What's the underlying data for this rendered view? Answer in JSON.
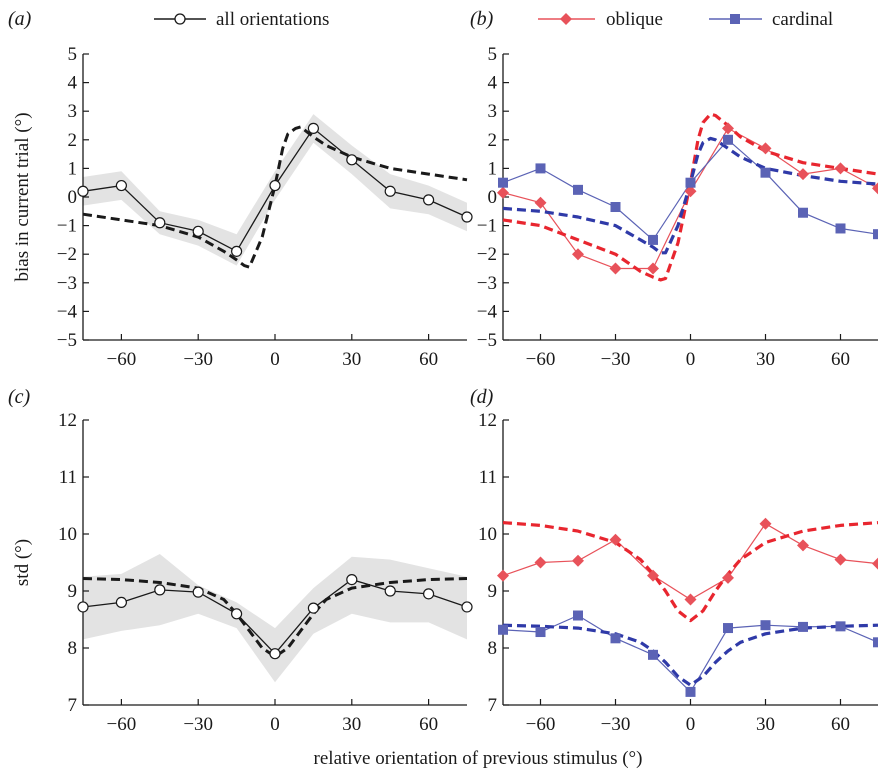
{
  "figure": {
    "xlabel": "relative orientation of previous stimulus (°)"
  },
  "legend": {
    "all": "all orientations",
    "oblique": "oblique",
    "cardinal": "cardinal"
  },
  "colors": {
    "black": "#1a1a1a",
    "oblique": "#e8525a",
    "oblique_fit": "#e8262f",
    "cardinal": "#5b63b5",
    "cardinal_fit": "#2f3aa8",
    "shade": "#e3e3e3"
  },
  "chart_data": [
    {
      "panel": "(a)",
      "type": "line",
      "ylabel": "bias in current trial (°)",
      "xlim": [
        -75,
        75
      ],
      "ylim": [
        -5,
        5
      ],
      "xticks": [
        -60,
        -30,
        0,
        30,
        60
      ],
      "yticks": [
        -5,
        -4,
        -3,
        -2,
        -1,
        0,
        1,
        2,
        3,
        4,
        5
      ],
      "x": [
        -75,
        -60,
        -45,
        -30,
        -15,
        0,
        15,
        30,
        45,
        60,
        75
      ],
      "series": [
        {
          "name": "all orientations",
          "marker": "circle",
          "values": [
            0.2,
            0.4,
            -0.9,
            -1.2,
            -1.9,
            0.4,
            2.4,
            1.3,
            0.2,
            -0.1,
            -0.7
          ],
          "band_upper": [
            0.7,
            0.9,
            -0.5,
            -0.8,
            -1.3,
            0.9,
            2.9,
            1.8,
            0.8,
            0.4,
            -0.2
          ],
          "band_lower": [
            -0.3,
            -0.1,
            -1.3,
            -1.7,
            -2.4,
            -0.1,
            1.9,
            0.8,
            -0.4,
            -0.6,
            -1.2
          ],
          "fit_x": [
            -75,
            -60,
            -45,
            -30,
            -20,
            -15,
            -12,
            -10,
            -5,
            0,
            3,
            5,
            8,
            10,
            15,
            20,
            30,
            45,
            60,
            75
          ],
          "fit": [
            -0.6,
            -0.8,
            -1.0,
            -1.4,
            -1.9,
            -2.2,
            -2.4,
            -2.45,
            -1.4,
            0.4,
            1.7,
            2.2,
            2.4,
            2.45,
            2.1,
            1.8,
            1.4,
            1.0,
            0.8,
            0.6
          ]
        }
      ]
    },
    {
      "panel": "(b)",
      "type": "line",
      "xlim": [
        -75,
        75
      ],
      "ylim": [
        -5,
        5
      ],
      "xticks": [
        -60,
        -30,
        0,
        30,
        60
      ],
      "yticks": [
        -5,
        -4,
        -3,
        -2,
        -1,
        0,
        1,
        2,
        3,
        4,
        5
      ],
      "x": [
        -75,
        -60,
        -45,
        -30,
        -15,
        0,
        15,
        30,
        45,
        60,
        75
      ],
      "series": [
        {
          "name": "oblique",
          "marker": "diamond",
          "values": [
            0.15,
            -0.2,
            -2.0,
            -2.5,
            -2.5,
            0.2,
            2.4,
            1.7,
            0.8,
            1.0,
            0.3
          ],
          "fit_x": [
            -75,
            -60,
            -45,
            -30,
            -20,
            -15,
            -12,
            -10,
            -5,
            0,
            3,
            5,
            8,
            10,
            15,
            20,
            30,
            45,
            60,
            75
          ],
          "fit": [
            -0.8,
            -1.0,
            -1.5,
            -2.0,
            -2.6,
            -2.8,
            -2.9,
            -2.85,
            -1.6,
            0.5,
            2.0,
            2.6,
            2.9,
            2.85,
            2.5,
            2.1,
            1.6,
            1.2,
            1.0,
            0.8
          ]
        },
        {
          "name": "cardinal",
          "marker": "square",
          "values": [
            0.5,
            1.0,
            0.25,
            -0.35,
            -1.5,
            0.5,
            2.0,
            0.85,
            -0.55,
            -1.1,
            -1.3
          ],
          "fit_x": [
            -75,
            -60,
            -45,
            -30,
            -20,
            -15,
            -12,
            -10,
            -5,
            0,
            3,
            5,
            8,
            10,
            15,
            20,
            30,
            45,
            60,
            75
          ],
          "fit": [
            -0.4,
            -0.5,
            -0.7,
            -1.0,
            -1.5,
            -1.75,
            -1.95,
            -1.95,
            -1.0,
            0.5,
            1.5,
            1.9,
            2.05,
            2.0,
            1.7,
            1.4,
            1.0,
            0.75,
            0.55,
            0.45
          ]
        }
      ]
    },
    {
      "panel": "(c)",
      "type": "line",
      "ylabel": "std (°)",
      "xlim": [
        -75,
        75
      ],
      "ylim": [
        7,
        12
      ],
      "xticks": [
        -60,
        -30,
        0,
        30,
        60
      ],
      "yticks": [
        7,
        8,
        9,
        10,
        11,
        12
      ],
      "x": [
        -75,
        -60,
        -45,
        -30,
        -15,
        0,
        15,
        30,
        45,
        60,
        75
      ],
      "series": [
        {
          "name": "all orientations",
          "marker": "circle",
          "values": [
            8.72,
            8.8,
            9.02,
            8.98,
            8.6,
            7.9,
            8.7,
            9.2,
            9.0,
            8.95,
            8.72
          ],
          "band_upper": [
            9.25,
            9.3,
            9.65,
            9.1,
            8.8,
            8.35,
            9.05,
            9.6,
            9.55,
            9.4,
            9.25
          ],
          "band_lower": [
            8.15,
            8.3,
            8.4,
            8.6,
            8.35,
            7.4,
            8.25,
            8.6,
            8.45,
            8.45,
            8.15
          ],
          "fit_x": [
            -75,
            -60,
            -45,
            -30,
            -20,
            -15,
            -10,
            -5,
            0,
            5,
            10,
            15,
            20,
            30,
            45,
            60,
            75
          ],
          "fit": [
            9.22,
            9.2,
            9.15,
            9.05,
            8.85,
            8.6,
            8.3,
            8.0,
            7.85,
            8.0,
            8.3,
            8.6,
            8.85,
            9.05,
            9.15,
            9.2,
            9.22
          ]
        }
      ]
    },
    {
      "panel": "(d)",
      "type": "line",
      "xlim": [
        -75,
        75
      ],
      "ylim": [
        7,
        12
      ],
      "xticks": [
        -60,
        -30,
        0,
        30,
        60
      ],
      "yticks": [
        7,
        8,
        9,
        10,
        11,
        12
      ],
      "x": [
        -75,
        -60,
        -45,
        -30,
        -15,
        0,
        15,
        30,
        45,
        60,
        75
      ],
      "series": [
        {
          "name": "oblique",
          "marker": "diamond",
          "values": [
            9.27,
            9.5,
            9.53,
            9.9,
            9.27,
            8.85,
            9.23,
            10.18,
            9.8,
            9.55,
            9.48
          ],
          "fit_x": [
            -75,
            -60,
            -45,
            -30,
            -20,
            -15,
            -10,
            -5,
            0,
            5,
            10,
            15,
            20,
            30,
            45,
            60,
            75
          ],
          "fit": [
            10.2,
            10.15,
            10.05,
            9.85,
            9.55,
            9.3,
            9.0,
            8.65,
            8.48,
            8.65,
            9.0,
            9.3,
            9.55,
            9.85,
            10.05,
            10.15,
            10.2
          ]
        },
        {
          "name": "cardinal",
          "marker": "square",
          "values": [
            8.32,
            8.28,
            8.57,
            8.17,
            7.88,
            7.23,
            8.35,
            8.4,
            8.37,
            8.38,
            8.1
          ],
          "fit_x": [
            -75,
            -60,
            -45,
            -30,
            -20,
            -15,
            -10,
            -5,
            0,
            5,
            10,
            15,
            20,
            30,
            45,
            60,
            75
          ],
          "fit": [
            8.4,
            8.38,
            8.35,
            8.25,
            8.1,
            7.95,
            7.75,
            7.5,
            7.35,
            7.5,
            7.75,
            7.95,
            8.1,
            8.25,
            8.35,
            8.38,
            8.4
          ]
        }
      ]
    }
  ]
}
